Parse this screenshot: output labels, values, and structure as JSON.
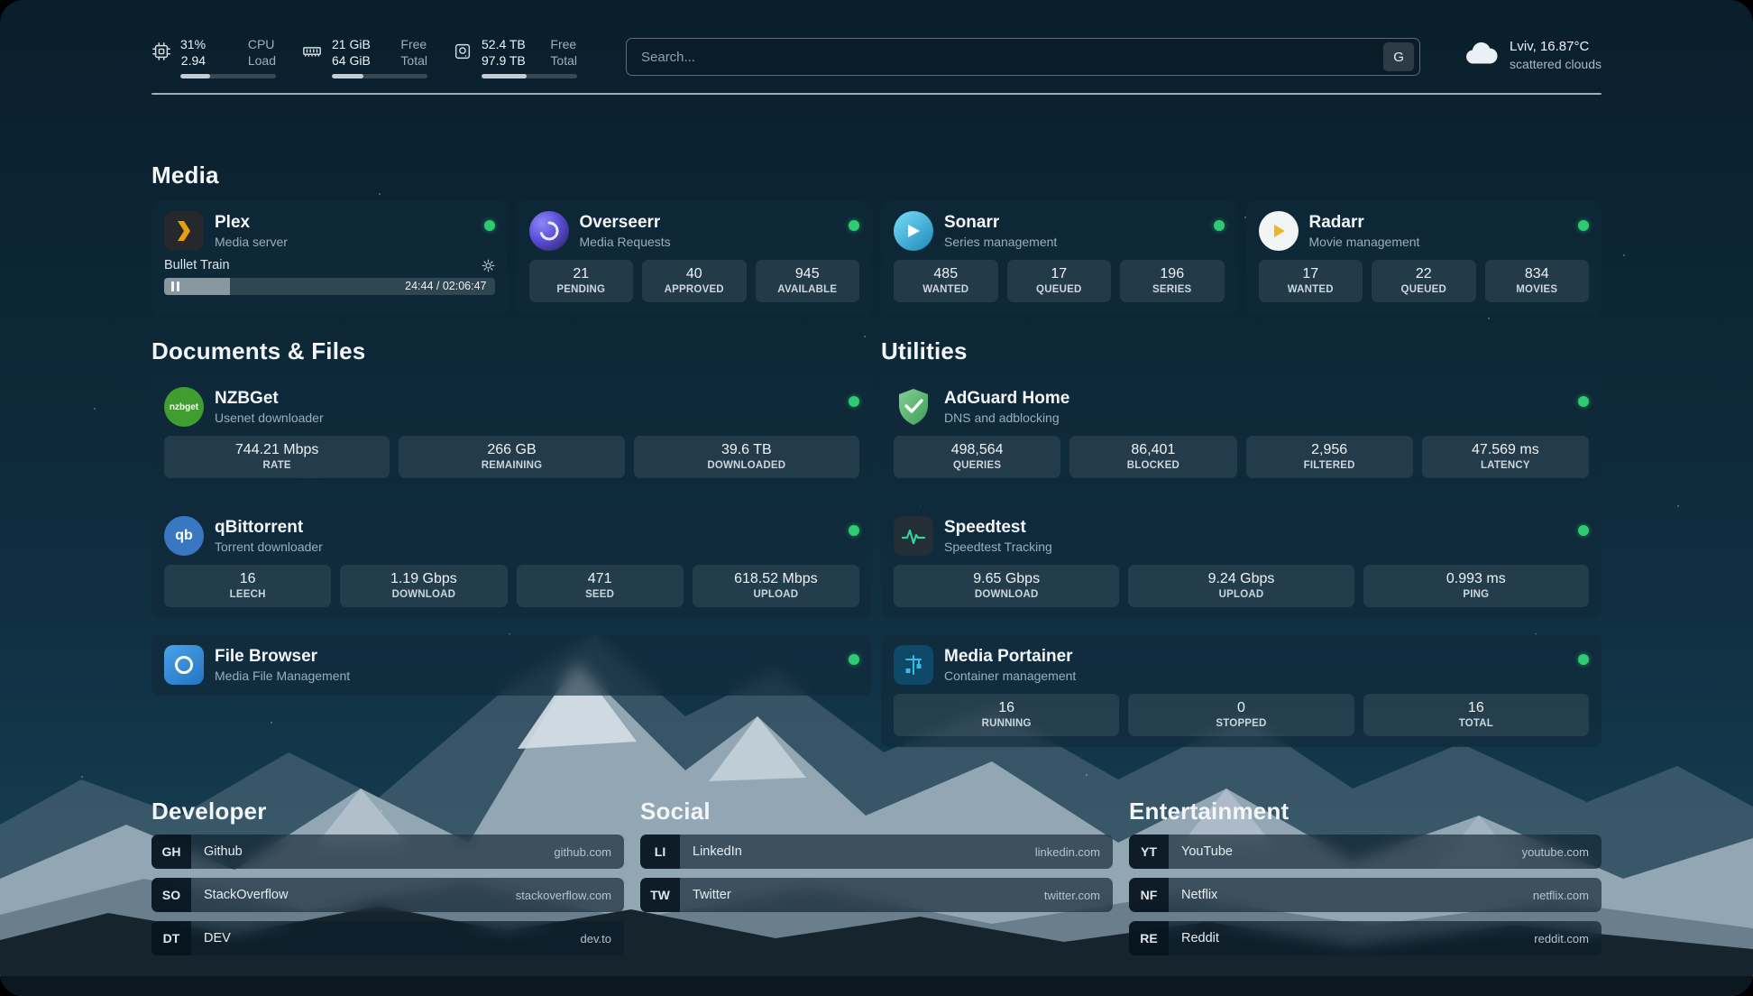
{
  "topbar": {
    "cpu": {
      "icon": "cpu-chip-icon",
      "values": [
        "31%",
        "2.94"
      ],
      "labels": [
        "CPU",
        "Load"
      ],
      "percent": 31
    },
    "memory": {
      "icon": "memory-icon",
      "values": [
        "21 GiB",
        "64 GiB"
      ],
      "labels": [
        "Free",
        "Total"
      ],
      "percent": 33
    },
    "disk": {
      "icon": "hard-drive-icon",
      "values": [
        "52.4 TB",
        "97.9 TB"
      ],
      "labels": [
        "Free",
        "Total"
      ],
      "percent": 47
    },
    "search": {
      "placeholder": "Search...",
      "engine_button": "G"
    },
    "weather": {
      "icon": "cloud-icon",
      "location": "Lviv, 16.87°C",
      "condition": "scattered clouds"
    }
  },
  "sections": {
    "media": "Media",
    "documents": "Documents & Files",
    "utilities": "Utilities"
  },
  "media": {
    "cards": [
      {
        "name": "Plex",
        "subtitle": "Media server",
        "icon": "plex-icon",
        "status": "online",
        "now_playing": {
          "title": "Bullet Train",
          "time": "24:44 / 02:06:47",
          "progress": 20
        }
      },
      {
        "name": "Overseerr",
        "subtitle": "Media Requests",
        "icon": "overseerr-icon",
        "status": "online",
        "stats": [
          {
            "value": "21",
            "label": "PENDING"
          },
          {
            "value": "40",
            "label": "APPROVED"
          },
          {
            "value": "945",
            "label": "AVAILABLE"
          }
        ]
      },
      {
        "name": "Sonarr",
        "subtitle": "Series management",
        "icon": "sonarr-icon",
        "status": "online",
        "stats": [
          {
            "value": "485",
            "label": "WANTED"
          },
          {
            "value": "17",
            "label": "QUEUED"
          },
          {
            "value": "196",
            "label": "SERIES"
          }
        ]
      },
      {
        "name": "Radarr",
        "subtitle": "Movie management",
        "icon": "radarr-icon",
        "status": "online",
        "stats": [
          {
            "value": "17",
            "label": "WANTED"
          },
          {
            "value": "22",
            "label": "QUEUED"
          },
          {
            "value": "834",
            "label": "MOVIES"
          }
        ]
      }
    ]
  },
  "documents": {
    "cards": [
      {
        "name": "NZBGet",
        "subtitle": "Usenet downloader",
        "icon": "nzbget-icon",
        "status": "online",
        "stats": [
          {
            "value": "744.21 Mbps",
            "label": "RATE"
          },
          {
            "value": "266 GB",
            "label": "REMAINING"
          },
          {
            "value": "39.6 TB",
            "label": "DOWNLOADED"
          }
        ]
      },
      {
        "name": "qBittorrent",
        "subtitle": "Torrent downloader",
        "icon": "qbittorrent-icon",
        "status": "online",
        "stats": [
          {
            "value": "16",
            "label": "LEECH"
          },
          {
            "value": "1.19 Gbps",
            "label": "DOWNLOAD"
          },
          {
            "value": "471",
            "label": "SEED"
          },
          {
            "value": "618.52 Mbps",
            "label": "UPLOAD"
          }
        ]
      },
      {
        "name": "File Browser",
        "subtitle": "Media File Management",
        "icon": "filebrowser-icon",
        "status": "online",
        "stats": []
      }
    ]
  },
  "utilities": {
    "cards": [
      {
        "name": "AdGuard Home",
        "subtitle": "DNS and adblocking",
        "icon": "adguard-shield-icon",
        "status": "online",
        "stats": [
          {
            "value": "498,564",
            "label": "QUERIES"
          },
          {
            "value": "86,401",
            "label": "BLOCKED"
          },
          {
            "value": "2,956",
            "label": "FILTERED"
          },
          {
            "value": "47.569 ms",
            "label": "LATENCY"
          }
        ]
      },
      {
        "name": "Speedtest",
        "subtitle": "Speedtest Tracking",
        "icon": "speedtest-icon",
        "status": "online",
        "stats": [
          {
            "value": "9.65 Gbps",
            "label": "DOWNLOAD"
          },
          {
            "value": "9.24 Gbps",
            "label": "UPLOAD"
          },
          {
            "value": "0.993 ms",
            "label": "PING"
          }
        ]
      },
      {
        "name": "Media Portainer",
        "subtitle": "Container management",
        "icon": "portainer-icon",
        "status": "online",
        "stats": [
          {
            "value": "16",
            "label": "RUNNING"
          },
          {
            "value": "0",
            "label": "STOPPED"
          },
          {
            "value": "16",
            "label": "TOTAL"
          }
        ]
      }
    ]
  },
  "bookmarks": {
    "developer": {
      "title": "Developer",
      "items": [
        {
          "abbr": "GH",
          "name": "Github",
          "url": "github.com"
        },
        {
          "abbr": "SO",
          "name": "StackOverflow",
          "url": "stackoverflow.com"
        },
        {
          "abbr": "DT",
          "name": "DEV",
          "url": "dev.to"
        }
      ]
    },
    "social": {
      "title": "Social",
      "items": [
        {
          "abbr": "LI",
          "name": "LinkedIn",
          "url": "linkedin.com"
        },
        {
          "abbr": "TW",
          "name": "Twitter",
          "url": "twitter.com"
        }
      ]
    },
    "entertainment": {
      "title": "Entertainment",
      "items": [
        {
          "abbr": "YT",
          "name": "YouTube",
          "url": "youtube.com"
        },
        {
          "abbr": "NF",
          "name": "Netflix",
          "url": "netflix.com"
        },
        {
          "abbr": "RE",
          "name": "Reddit",
          "url": "reddit.com"
        }
      ]
    }
  },
  "colors": {
    "status_online": "#2ecc71",
    "plex_accent": "#e5a00d",
    "radarr_accent": "#f0b429",
    "sonarr_accent": "#57c8f2",
    "overseerr_accent": "#6d5df6",
    "nzbget_accent": "#3f9e2f",
    "qbittorrent_accent": "#3a77c2",
    "filebrowser_accent": "#3d8fd6",
    "adguard_accent": "#4ca868",
    "speedtest_accent": "#34d399",
    "portainer_accent": "#35b9e6"
  }
}
